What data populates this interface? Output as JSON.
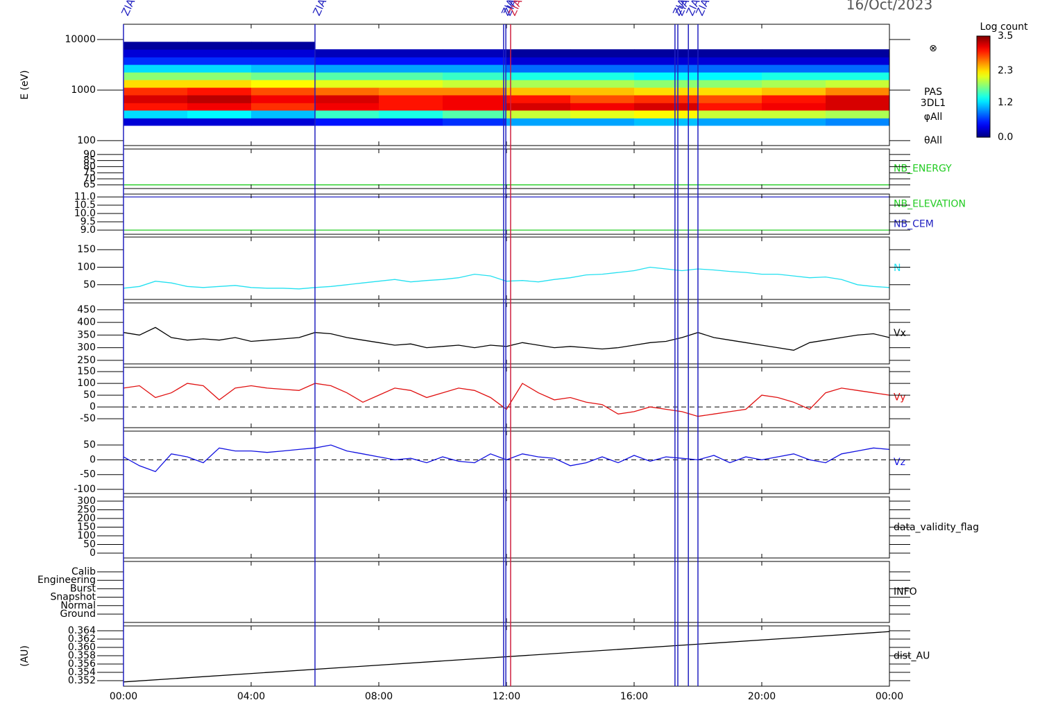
{
  "title": "16/Oct/2023",
  "time_axis": {
    "xlim": [
      0,
      24
    ],
    "xticks": [
      {
        "value": 0,
        "label": "00:00"
      },
      {
        "value": 4,
        "label": "04:00"
      },
      {
        "value": 8,
        "label": "08:00"
      },
      {
        "value": 12,
        "label": "12:00"
      },
      {
        "value": 16,
        "label": "16:00"
      },
      {
        "value": 20,
        "label": "20:00"
      },
      {
        "value": 24,
        "label": "00:00"
      }
    ]
  },
  "events": [
    {
      "x": 0,
      "label": "ZIAS",
      "color": "#2020c0"
    },
    {
      "x": 6,
      "label": "ZIAS",
      "color": "#2020c0"
    },
    {
      "x": 11.91,
      "label": "ZIAS",
      "color": "#2020c0"
    },
    {
      "x": 11.98,
      "label": "ZIAS",
      "color": "#2020c0"
    },
    {
      "x": 12.13,
      "label": "ZIAS",
      "color": "#d02040"
    },
    {
      "x": 17.28,
      "label": "ZIAS",
      "color": "#2020c0"
    },
    {
      "x": 17.37,
      "label": "ZIAS",
      "color": "#2020c0"
    },
    {
      "x": 17.7,
      "label": "ZIAS",
      "color": "#2020c0"
    },
    {
      "x": 18,
      "label": "ZIAS",
      "color": "#2020c0"
    }
  ],
  "chart_data": [
    {
      "type": "heatmap",
      "y_label": "E (eV)",
      "log": true,
      "ylim": [
        80,
        20000
      ],
      "yticks": [
        100,
        1000,
        10000
      ],
      "x_edges": [
        0,
        2,
        4,
        6,
        8,
        10,
        12,
        14,
        16,
        18,
        20,
        22,
        24
      ],
      "y_edges": [
        200,
        280,
        400,
        560,
        800,
        1130,
        1600,
        2260,
        3200,
        4500,
        6400,
        9000
      ],
      "z": [
        [
          0.3,
          1.2,
          3.0,
          3.2,
          2.9,
          2.3,
          1.8,
          1.2,
          0.6,
          0.3,
          0.1
        ],
        [
          0.3,
          1.3,
          3.1,
          3.3,
          3.0,
          2.3,
          1.8,
          1.2,
          0.6,
          0.3,
          0.1
        ],
        [
          0.3,
          1.1,
          2.9,
          3.1,
          2.8,
          2.2,
          1.7,
          1.1,
          0.6,
          0.3,
          0.1
        ],
        [
          0.5,
          1.5,
          3.1,
          3.2,
          2.7,
          2.1,
          1.6,
          1.0,
          0.5,
          0.2,
          null
        ],
        [
          0.5,
          1.4,
          3.0,
          3.0,
          2.6,
          2.1,
          1.6,
          1.0,
          0.5,
          0.2,
          null
        ],
        [
          0.6,
          1.6,
          3.1,
          3.1,
          2.6,
          2.0,
          1.5,
          1.0,
          0.5,
          0.2,
          null
        ],
        [
          1.0,
          2.0,
          3.2,
          3.0,
          2.4,
          1.9,
          1.4,
          0.8,
          0.3,
          0.1,
          null
        ],
        [
          1.0,
          2.1,
          3.1,
          2.8,
          2.4,
          1.9,
          1.4,
          0.8,
          0.3,
          0.1,
          null
        ],
        [
          1.1,
          2.2,
          3.2,
          2.9,
          2.3,
          1.8,
          1.3,
          0.8,
          0.3,
          0.1,
          null
        ],
        [
          1.0,
          2.0,
          3.0,
          2.8,
          2.3,
          1.8,
          1.3,
          0.8,
          0.3,
          0.1,
          null
        ],
        [
          1.0,
          2.0,
          3.1,
          3.0,
          2.4,
          1.9,
          1.4,
          0.8,
          0.3,
          0.1,
          null
        ],
        [
          0.9,
          1.9,
          3.2,
          3.2,
          2.6,
          2.0,
          1.4,
          0.8,
          0.3,
          0.1,
          null
        ]
      ],
      "zlim": [
        0,
        3.5
      ],
      "colorbar_title": "Log count",
      "zticks": [
        3.5,
        2.3,
        1.2,
        {
          "value": 0,
          "label": "0.0"
        }
      ],
      "annotations": [
        "⊗",
        "PAS",
        "3DL1",
        "φAll",
        "θAll"
      ]
    },
    {
      "type": "line",
      "ylim": [
        62,
        94.5
      ],
      "yticks": [
        65,
        70,
        75,
        80,
        85,
        90
      ],
      "series": [
        {
          "name": "NB_ENERGY",
          "color": "#22cc22",
          "x": [
            0,
            24
          ],
          "values": [
            65,
            65
          ]
        }
      ]
    },
    {
      "type": "line",
      "ylim": [
        8.75,
        11.17
      ],
      "yticks": [
        {
          "value": 9,
          "label": "9.0"
        },
        9.5,
        {
          "value": 10,
          "label": "10.0"
        },
        10.5,
        {
          "value": 11,
          "label": "11.0"
        }
      ],
      "series": [
        {
          "name": "NB_ELEVATION",
          "color": "#22cc22",
          "x": [
            0,
            24
          ],
          "values": [
            9,
            9
          ]
        },
        {
          "name": "NB_CEM",
          "color": "#2020c0",
          "x": [
            0,
            24
          ],
          "values": [
            11,
            11
          ]
        }
      ]
    },
    {
      "type": "line",
      "ylim": [
        8,
        186
      ],
      "yticks": [
        50,
        100,
        150
      ],
      "series": [
        {
          "name": "N",
          "color": "#22e0f0",
          "x": [
            0,
            0.5,
            1,
            1.5,
            2,
            2.5,
            3,
            3.5,
            4,
            4.5,
            5,
            5.5,
            6,
            6.5,
            7,
            7.5,
            8,
            8.5,
            9,
            9.5,
            10,
            10.5,
            11,
            11.5,
            12,
            12.5,
            13,
            13.5,
            14,
            14.5,
            15,
            15.5,
            16,
            16.5,
            17,
            17.5,
            18,
            18.5,
            19,
            19.5,
            20,
            20.5,
            21,
            21.5,
            22,
            22.5,
            23,
            23.5,
            24
          ],
          "values": [
            40,
            45,
            60,
            55,
            45,
            42,
            45,
            48,
            42,
            40,
            40,
            38,
            42,
            45,
            50,
            55,
            60,
            65,
            58,
            62,
            65,
            70,
            80,
            75,
            60,
            62,
            58,
            65,
            70,
            78,
            80,
            85,
            90,
            100,
            95,
            90,
            95,
            92,
            88,
            85,
            80,
            80,
            75,
            70,
            72,
            65,
            50,
            45,
            42
          ]
        }
      ]
    },
    {
      "type": "line",
      "ylim": [
        236,
        477
      ],
      "yticks": [
        250,
        300,
        350,
        400,
        450
      ],
      "series": [
        {
          "name": "Vx",
          "color": "#000000",
          "x": [
            0,
            0.5,
            1,
            1.5,
            2,
            2.5,
            3,
            3.5,
            4,
            4.5,
            5,
            5.5,
            6,
            6.5,
            7,
            7.5,
            8,
            8.5,
            9,
            9.5,
            10,
            10.5,
            11,
            11.5,
            12,
            12.5,
            13,
            13.5,
            14,
            14.5,
            15,
            15.5,
            16,
            16.5,
            17,
            17.5,
            18,
            18.5,
            19,
            19.5,
            20,
            20.5,
            21,
            21.5,
            22,
            22.5,
            23,
            23.5,
            24
          ],
          "values": [
            360,
            350,
            380,
            340,
            330,
            335,
            330,
            340,
            325,
            330,
            335,
            340,
            360,
            355,
            340,
            330,
            320,
            310,
            315,
            300,
            305,
            310,
            300,
            310,
            305,
            320,
            310,
            300,
            305,
            300,
            295,
            300,
            310,
            320,
            325,
            340,
            360,
            340,
            330,
            320,
            310,
            300,
            290,
            320,
            330,
            340,
            350,
            355,
            340
          ]
        }
      ]
    },
    {
      "type": "line",
      "ylim": [
        -88,
        168
      ],
      "yticks": [
        -50,
        0,
        50,
        100,
        150
      ],
      "reference_line": 0,
      "series": [
        {
          "name": "Vy",
          "color": "#e01010",
          "x": [
            0,
            0.5,
            1,
            1.5,
            2,
            2.5,
            3,
            3.5,
            4,
            4.5,
            5,
            5.5,
            6,
            6.5,
            7,
            7.5,
            8,
            8.5,
            9,
            9.5,
            10,
            10.5,
            11,
            11.5,
            12,
            12.5,
            13,
            13.5,
            14,
            14.5,
            15,
            15.5,
            16,
            16.5,
            17,
            17.5,
            18,
            18.5,
            19,
            19.5,
            20,
            20.5,
            21,
            21.5,
            22,
            22.5,
            23,
            23.5,
            24
          ],
          "values": [
            80,
            90,
            40,
            60,
            100,
            90,
            30,
            80,
            90,
            80,
            75,
            70,
            100,
            90,
            60,
            20,
            50,
            80,
            70,
            40,
            60,
            80,
            70,
            40,
            -10,
            100,
            60,
            30,
            40,
            20,
            10,
            -30,
            -20,
            0,
            -10,
            -20,
            -40,
            -30,
            -20,
            -10,
            50,
            40,
            20,
            -10,
            60,
            80,
            70,
            60,
            50
          ]
        }
      ]
    },
    {
      "type": "line",
      "ylim": [
        -114,
        97
      ],
      "yticks": [
        -100,
        -50,
        0,
        50
      ],
      "reference_line": 0,
      "series": [
        {
          "name": "Vz",
          "color": "#1010e0",
          "x": [
            0,
            0.5,
            1,
            1.5,
            2,
            2.5,
            3,
            3.5,
            4,
            4.5,
            5,
            5.5,
            6,
            6.5,
            7,
            7.5,
            8,
            8.5,
            9,
            9.5,
            10,
            10.5,
            11,
            11.5,
            12,
            12.5,
            13,
            13.5,
            14,
            14.5,
            15,
            15.5,
            16,
            16.5,
            17,
            17.5,
            18,
            18.5,
            19,
            19.5,
            20,
            20.5,
            21,
            21.5,
            22,
            22.5,
            23,
            23.5,
            24
          ],
          "values": [
            10,
            -20,
            -40,
            20,
            10,
            -10,
            40,
            30,
            30,
            25,
            30,
            35,
            40,
            50,
            30,
            20,
            10,
            0,
            5,
            -10,
            10,
            -5,
            -10,
            20,
            0,
            20,
            10,
            5,
            -20,
            -10,
            10,
            -10,
            15,
            -5,
            10,
            5,
            0,
            15,
            -10,
            10,
            0,
            10,
            20,
            0,
            -10,
            20,
            30,
            40,
            35
          ]
        }
      ]
    },
    {
      "type": "line",
      "ylim": [
        -28,
        324
      ],
      "yticks": [
        0,
        50,
        100,
        150,
        200,
        250,
        300
      ],
      "label": "data_validity_flag",
      "series": []
    },
    {
      "type": "category",
      "categories": [
        "Calib",
        "Engineering",
        "Burst",
        "Snapshot",
        "Normal",
        "Ground"
      ],
      "label": "INFO"
    },
    {
      "type": "line",
      "y_label": "(AU)",
      "ylim": [
        0.35067,
        0.36517
      ],
      "yticks": [
        0.352,
        0.354,
        0.356,
        0.358,
        {
          "value": 0.36,
          "label": "0.360"
        },
        0.362,
        0.364
      ],
      "series": [
        {
          "name": "dist_AU",
          "color": "#000000",
          "x": [
            0,
            24
          ],
          "values": [
            0.3517,
            0.3638
          ]
        }
      ]
    }
  ]
}
